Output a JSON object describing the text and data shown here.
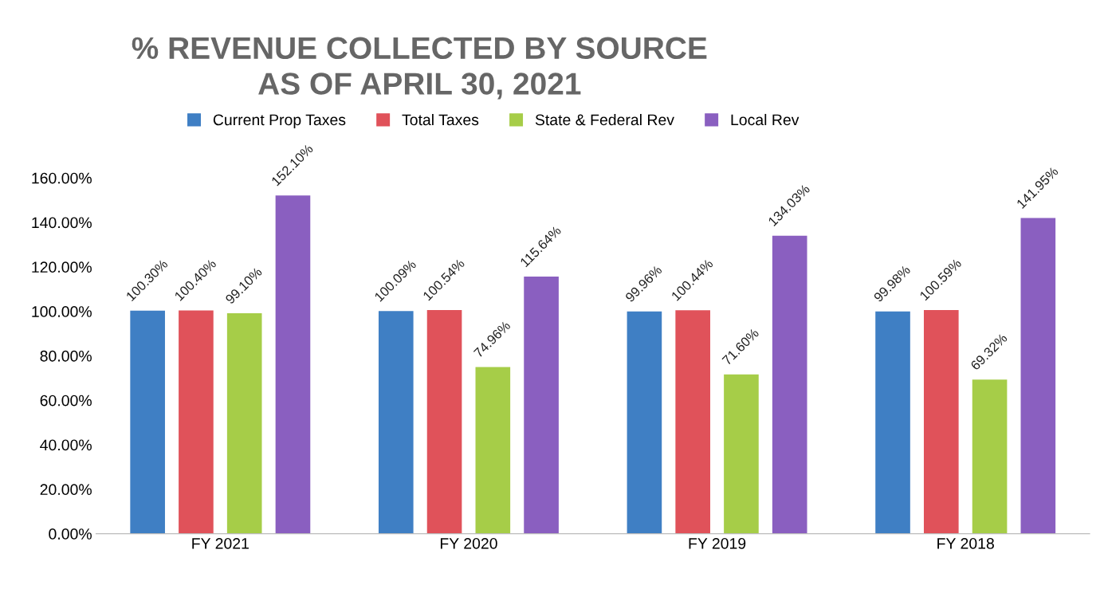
{
  "chart_data": {
    "type": "bar",
    "title": "% REVENUE COLLECTED BY SOURCE\nAS OF APRIL 30, 2021",
    "categories": [
      "FY 2021",
      "FY 2020",
      "FY 2019",
      "FY 2018"
    ],
    "series": [
      {
        "name": "Current Prop Taxes",
        "color": "#3f7fc4",
        "values": [
          100.3,
          100.09,
          99.96,
          99.98
        ],
        "value_labels": [
          "100.30%",
          "100.09%",
          "99.96%",
          "99.98%"
        ]
      },
      {
        "name": "Total Taxes",
        "color": "#e0525a",
        "values": [
          100.4,
          100.54,
          100.44,
          100.59
        ],
        "value_labels": [
          "100.40%",
          "100.54%",
          "100.44%",
          "100.59%"
        ]
      },
      {
        "name": "State & Federal Rev",
        "color": "#a6cd48",
        "values": [
          99.1,
          74.96,
          71.6,
          69.32
        ],
        "value_labels": [
          "99.10%",
          "74.96%",
          "71.60%",
          "69.32%"
        ]
      },
      {
        "name": "Local Rev",
        "color": "#8a5fc0",
        "values": [
          152.1,
          115.64,
          134.03,
          141.95
        ],
        "value_labels": [
          "152.10%",
          "115.64%",
          "134.03%",
          "141.95%"
        ]
      }
    ],
    "ylim": [
      0,
      160
    ],
    "yticks": [
      {
        "value": 0,
        "label": "0.00%"
      },
      {
        "value": 20,
        "label": "20.00%"
      },
      {
        "value": 40,
        "label": "40.00%"
      },
      {
        "value": 60,
        "label": "60.00%"
      },
      {
        "value": 80,
        "label": "80.00%"
      },
      {
        "value": 100,
        "label": "100.00%"
      },
      {
        "value": 120,
        "label": "120.00%"
      },
      {
        "value": 140,
        "label": "140.00%"
      },
      {
        "value": 160,
        "label": "160.00%"
      }
    ],
    "grid": false,
    "legend": "top"
  }
}
